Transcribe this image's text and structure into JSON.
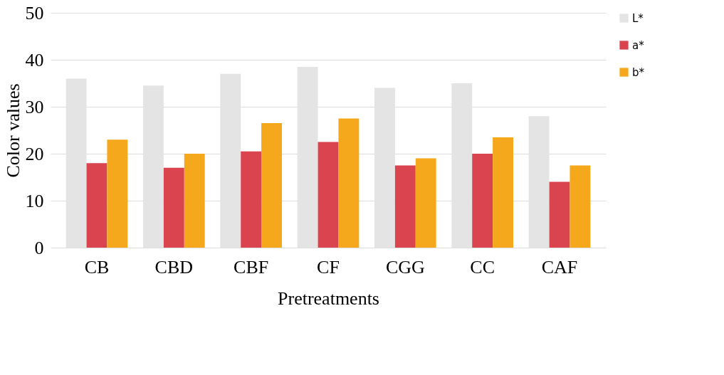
{
  "chart_data": {
    "type": "bar",
    "xlabel": "Pretreatments",
    "ylabel": "Color values",
    "categories": [
      "CB",
      "CBD",
      "CBF",
      "CF",
      "CGG",
      "CC",
      "CAF"
    ],
    "series": [
      {
        "name": "L*",
        "color": "#e4e4e4",
        "values": [
          36,
          34.5,
          37,
          38.5,
          34,
          35,
          28
        ]
      },
      {
        "name": "a*",
        "color": "#d9444f",
        "values": [
          18,
          17,
          20.5,
          22.5,
          17.5,
          20,
          14
        ]
      },
      {
        "name": "b*",
        "color": "#f5a81c",
        "values": [
          23,
          20,
          26.5,
          27.5,
          19,
          23.5,
          17.5
        ]
      }
    ],
    "ylim": [
      0,
      50
    ],
    "yticks": [
      0,
      10,
      20,
      30,
      40,
      50
    ],
    "grid": "y",
    "legend": "right"
  }
}
